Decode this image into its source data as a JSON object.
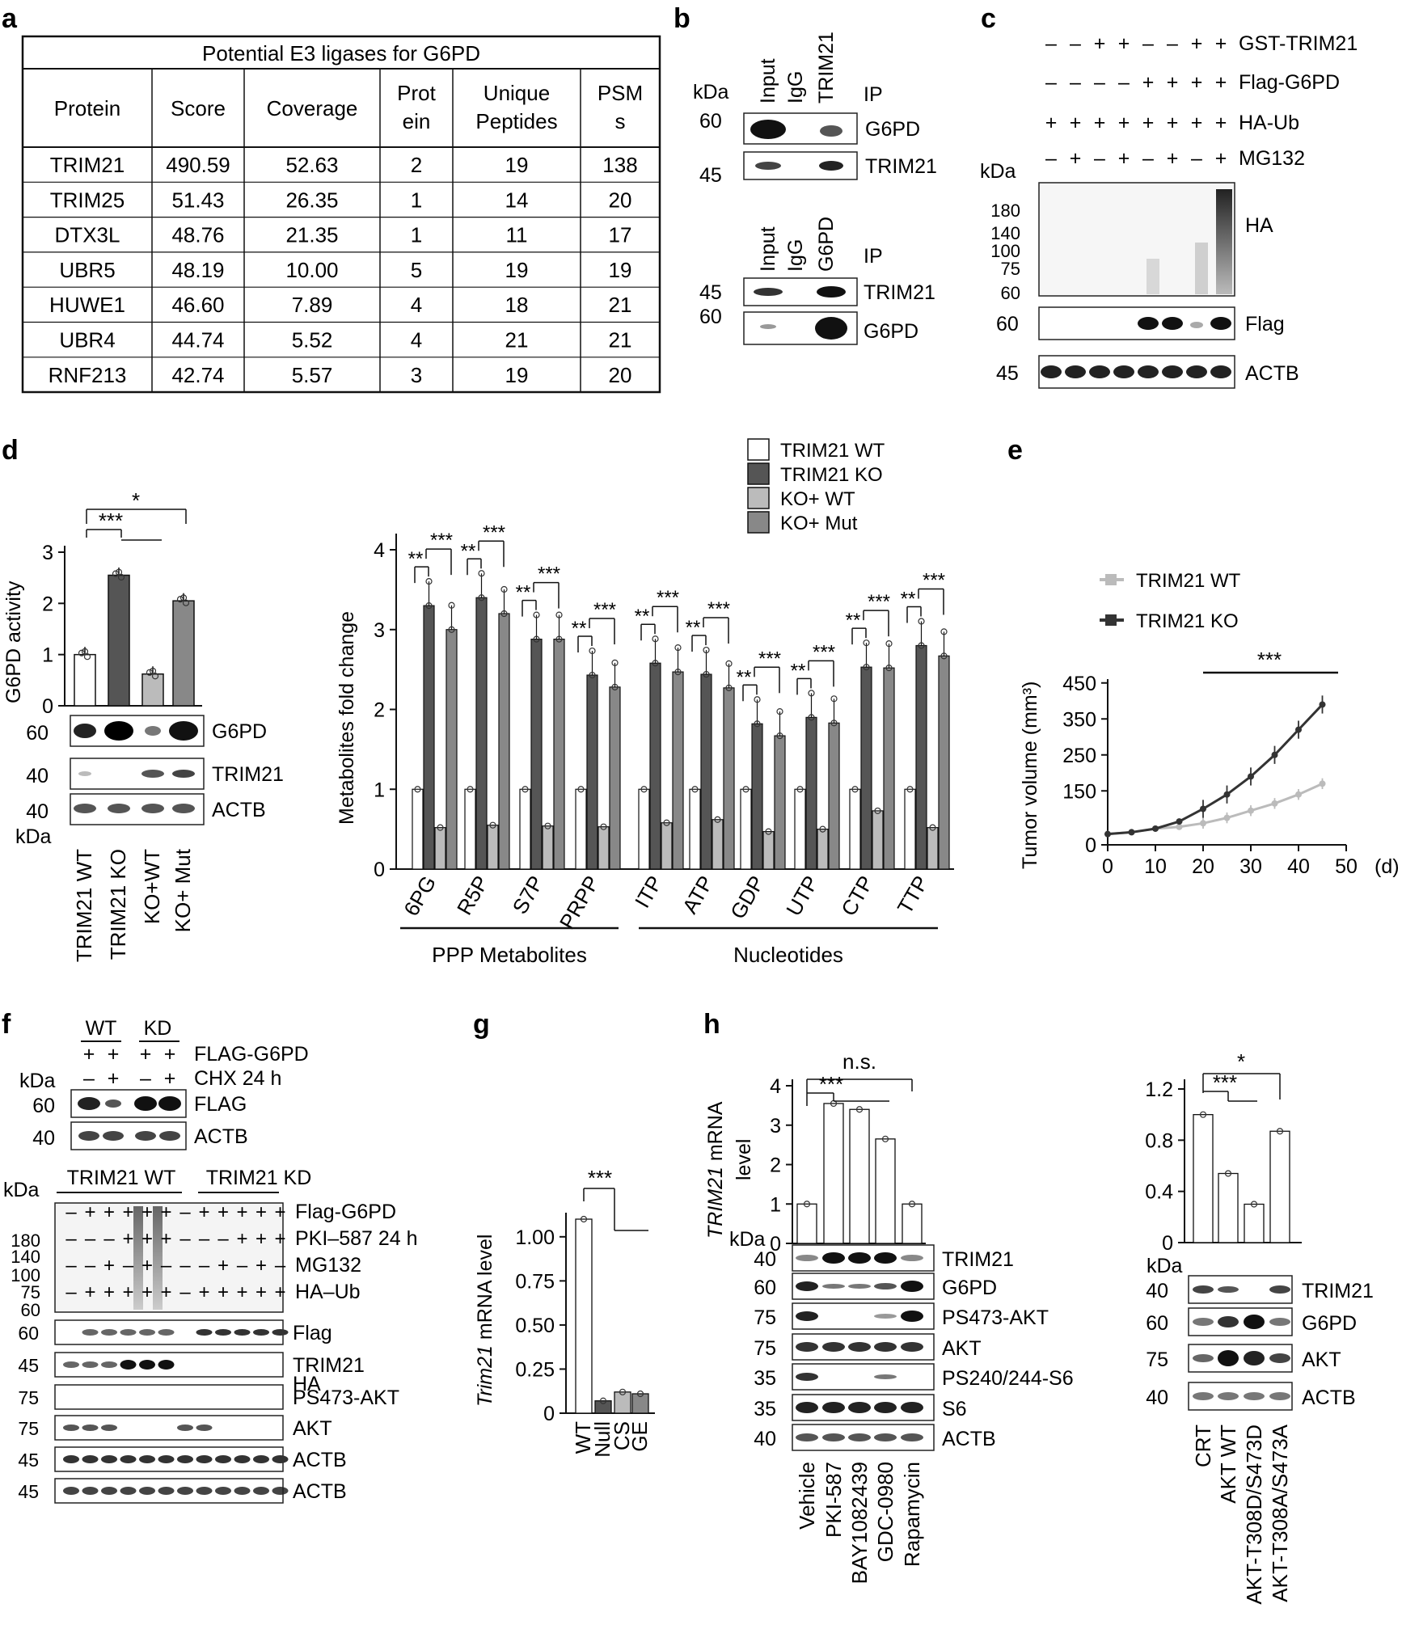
{
  "panels": {
    "a": "a",
    "b": "b",
    "c": "c",
    "d": "d",
    "e": "e",
    "f": "f",
    "g": "g",
    "h": "h"
  },
  "table": {
    "title": "Potential E3 ligases for G6PD",
    "headers": [
      [
        "Protein"
      ],
      [
        "Score"
      ],
      [
        "Coverage"
      ],
      [
        "Prot",
        "ein"
      ],
      [
        "Unique",
        "Peptides"
      ],
      [
        "PSM",
        "s"
      ]
    ],
    "rows": [
      [
        "TRIM21",
        "490.59",
        "52.63",
        "2",
        "19",
        "138"
      ],
      [
        "TRIM25",
        "51.43",
        "26.35",
        "1",
        "14",
        "20"
      ],
      [
        "DTX3L",
        "48.76",
        "21.35",
        "1",
        "11",
        "17"
      ],
      [
        "UBR5",
        "48.19",
        "10.00",
        "5",
        "19",
        "19"
      ],
      [
        "HUWE1",
        "46.60",
        "7.89",
        "4",
        "18",
        "21"
      ],
      [
        "UBR4",
        "44.74",
        "5.52",
        "4",
        "21",
        "21"
      ],
      [
        "RNF213",
        "42.74",
        "5.57",
        "3",
        "19",
        "20"
      ]
    ]
  },
  "panel_b": {
    "top": {
      "lanes": [
        "Input",
        "IgG",
        "TRIM21"
      ],
      "ip": "IP",
      "kda": "kDa",
      "bands": [
        "G6PD",
        "TRIM21"
      ],
      "mw": [
        "60",
        "45"
      ]
    },
    "bottom": {
      "lanes": [
        "Input",
        "IgG",
        "G6PD"
      ],
      "ip": "IP",
      "bands": [
        "TRIM21",
        "G6PD"
      ],
      "mw": [
        "45",
        "60"
      ]
    }
  },
  "panel_c": {
    "conditions": [
      {
        "name": "GST-TRIM21",
        "signs": [
          "–",
          "–",
          "+",
          "+",
          "–",
          "–",
          "+",
          "+"
        ]
      },
      {
        "name": "Flag-G6PD",
        "signs": [
          "–",
          "–",
          "–",
          "–",
          "+",
          "+",
          "+",
          "+"
        ]
      },
      {
        "name": "HA-Ub",
        "signs": [
          "+",
          "+",
          "+",
          "+",
          "+",
          "+",
          "+",
          "+"
        ]
      },
      {
        "name": "MG132",
        "signs": [
          "–",
          "+",
          "–",
          "+",
          "–",
          "+",
          "–",
          "+"
        ]
      }
    ],
    "kda": "kDa",
    "ha_mw": [
      "180",
      "140",
      "100",
      "75",
      "60"
    ],
    "bands": [
      {
        "name": "HA"
      },
      {
        "name": "Flag",
        "mw": "60"
      },
      {
        "name": "ACTB",
        "mw": "45"
      }
    ]
  },
  "panel_d_left": {
    "ylabel": "G6PD activity",
    "yticks": [
      "0",
      "1",
      "2",
      "3"
    ],
    "sig": [
      "***",
      "*"
    ],
    "bands": [
      {
        "name": "G6PD",
        "mw": "60"
      },
      {
        "name": "TRIM21",
        "mw": "40"
      },
      {
        "name": "ACTB",
        "mw": "40"
      }
    ],
    "kda": "kDa",
    "lanes": [
      "TRIM21 WT",
      "TRIM21 KO",
      "KO+WT",
      "KO+ Mut"
    ]
  },
  "panel_d_right": {
    "ylabel": "Metabolites fold change",
    "yticks": [
      "0",
      "1",
      "2",
      "3",
      "4"
    ],
    "legend": [
      "TRIM21 WT",
      "TRIM21 KO",
      "KO+ WT",
      "KO+ Mut"
    ],
    "groups": [
      "PPP Metabolites",
      "Nucleotides"
    ]
  },
  "panel_e": {
    "ylabel": "Tumor volume (mm³)",
    "unit": "(d)",
    "sig": "***",
    "xticks": [
      "0",
      "10",
      "20",
      "30",
      "40",
      "50"
    ],
    "yticks": [
      "0",
      "150",
      "250",
      "350",
      "450"
    ]
  },
  "panel_f": {
    "top": {
      "groups": [
        "WT",
        "KD"
      ],
      "rows": [
        {
          "name": "FLAG-G6PD",
          "signs": [
            "+",
            "+",
            "+",
            "+"
          ]
        },
        {
          "name": "CHX 24 h",
          "signs": [
            "–",
            "+",
            "–",
            "+"
          ]
        }
      ],
      "kda": "kDa",
      "bands": [
        {
          "name": "FLAG",
          "mw": "60"
        },
        {
          "name": "ACTB",
          "mw": "40"
        }
      ]
    },
    "bottom": {
      "groups": [
        "TRIM21 WT",
        "TRIM21 KD"
      ],
      "rows": [
        {
          "name": "Flag-G6PD",
          "signs": [
            "–",
            "+",
            "+",
            "+",
            "+",
            "+",
            "–",
            "+",
            "+",
            "+",
            "+",
            "+"
          ]
        },
        {
          "name": "PKI–587 24 h",
          "signs": [
            "–",
            "–",
            "–",
            "+",
            "+",
            "+",
            "–",
            "–",
            "–",
            "+",
            "+",
            "+"
          ]
        },
        {
          "name": "MG132",
          "signs": [
            "–",
            "–",
            "+",
            "–",
            "+",
            "–",
            "–",
            "–",
            "+",
            "–",
            "+",
            "–"
          ]
        },
        {
          "name": "HA–Ub",
          "signs": [
            "–",
            "+",
            "+",
            "+",
            "+",
            "+",
            "–",
            "+",
            "+",
            "+",
            "+",
            "+"
          ]
        }
      ],
      "kda": "kDa",
      "ha_mw": [
        "180",
        "140",
        "100",
        "75",
        "60"
      ],
      "bands": [
        {
          "name": "HA"
        },
        {
          "name": "Flag",
          "mw": "60"
        },
        {
          "name": "TRIM21",
          "mw": "45"
        },
        {
          "name": "PS473-AKT",
          "mw": "75"
        },
        {
          "name": "AKT",
          "mw": "75"
        },
        {
          "name": "ACTB",
          "mw": "45"
        }
      ]
    }
  },
  "panel_g": {
    "ylabel_italic": "Trim21",
    "ylabel_rest": " mRNA level",
    "sig": "***",
    "yticks": [
      "0",
      "0.25",
      "0.50",
      "0.75",
      "1.00"
    ],
    "lanes": [
      "WT",
      "Null",
      "CS",
      "GE"
    ]
  },
  "panel_h_left": {
    "ylabel_italic": "TRIM21",
    "ylabel_rest": " mRNA",
    "ylabel2": "level",
    "sig": [
      "***",
      "n.s."
    ],
    "yticks": [
      "0",
      "1",
      "2",
      "3",
      "4"
    ],
    "kda": "kDa",
    "bands": [
      {
        "name": "TRIM21",
        "mw": "40"
      },
      {
        "name": "G6PD",
        "mw": "60"
      },
      {
        "name": "PS473-AKT",
        "mw": "75"
      },
      {
        "name": "AKT",
        "mw": "75"
      },
      {
        "name": "PS240/244-S6",
        "mw": "35"
      },
      {
        "name": "S6",
        "mw": "35"
      },
      {
        "name": "ACTB",
        "mw": "40"
      }
    ],
    "lanes": [
      "Vehicle",
      "PKI-587",
      "BAY1082439",
      "GDC-0980",
      "Rapamycin"
    ]
  },
  "panel_h_right": {
    "sig": [
      "***",
      "*"
    ],
    "yticks": [
      "0",
      "0.4",
      "0.8",
      "1.2"
    ],
    "kda": "kDa",
    "bands": [
      {
        "name": "TRIM21",
        "mw": "40"
      },
      {
        "name": "G6PD",
        "mw": "60"
      },
      {
        "name": "AKT",
        "mw": "75"
      },
      {
        "name": "ACTB",
        "mw": "40"
      }
    ],
    "lanes": [
      "CRT",
      "AKT WT",
      "AKT-T308D/S473D",
      "AKT-T308A/S473A"
    ]
  },
  "chart_data": [
    {
      "type": "bar",
      "panel": "d-left",
      "categories": [
        "TRIM21 WT",
        "TRIM21 KO",
        "KO+WT",
        "KO+ Mut"
      ],
      "values": [
        1.0,
        2.55,
        0.62,
        2.05
      ],
      "ylabel": "G6PD activity",
      "ylim": [
        0,
        3
      ]
    },
    {
      "type": "bar",
      "panel": "d-right",
      "categories": [
        "6PG",
        "R5P",
        "S7P",
        "PRPP",
        "ITP",
        "ATP",
        "GDP",
        "UTP",
        "CTP",
        "TTP"
      ],
      "series": [
        {
          "name": "TRIM21 WT",
          "values": [
            1,
            1,
            1,
            1,
            1,
            1,
            1,
            1,
            1,
            1
          ]
        },
        {
          "name": "TRIM21 KO",
          "values": [
            3.3,
            3.4,
            2.88,
            2.43,
            2.58,
            2.44,
            1.82,
            1.9,
            2.53,
            2.8
          ]
        },
        {
          "name": "KO+ WT",
          "values": [
            0.52,
            0.55,
            0.54,
            0.53,
            0.58,
            0.62,
            0.47,
            0.5,
            0.73,
            0.52
          ]
        },
        {
          "name": "KO+ Mut",
          "values": [
            3.0,
            3.2,
            2.88,
            2.28,
            2.47,
            2.27,
            1.67,
            1.83,
            2.52,
            2.67
          ]
        }
      ],
      "ylabel": "Metabolites fold change",
      "ylim": [
        0,
        4.2
      ]
    },
    {
      "type": "line",
      "panel": "e",
      "x": [
        0,
        5,
        10,
        15,
        20,
        25,
        30,
        35,
        40,
        45
      ],
      "series": [
        {
          "name": "TRIM21 WT",
          "values": [
            30,
            35,
            45,
            50,
            60,
            75,
            95,
            115,
            140,
            170
          ]
        },
        {
          "name": "TRIM21 KO",
          "values": [
            30,
            35,
            45,
            65,
            100,
            140,
            190,
            250,
            320,
            390
          ]
        }
      ],
      "ylabel": "Tumor volume (mm³)",
      "xlim": [
        0,
        50
      ],
      "ylim": [
        0,
        450
      ]
    },
    {
      "type": "bar",
      "panel": "g",
      "categories": [
        "WT",
        "Null",
        "CS",
        "GE"
      ],
      "values": [
        1.1,
        0.07,
        0.12,
        0.11
      ],
      "ylabel": "Trim21 mRNA level",
      "ylim": [
        0,
        1.1
      ]
    },
    {
      "type": "bar",
      "panel": "h-left",
      "categories": [
        "Vehicle",
        "PKI-587",
        "BAY1082439",
        "GDC-0980",
        "Rapamycin"
      ],
      "values": [
        1.0,
        3.55,
        3.4,
        2.65,
        1.0
      ],
      "ylabel": "TRIM21 mRNA level",
      "ylim": [
        0,
        4
      ]
    },
    {
      "type": "bar",
      "panel": "h-right",
      "categories": [
        "CRT",
        "AKT WT",
        "AKT-T308D/S473D",
        "AKT-T308A/S473A"
      ],
      "values": [
        1.0,
        0.54,
        0.3,
        0.87
      ],
      "ylim": [
        0,
        1.2
      ]
    }
  ]
}
